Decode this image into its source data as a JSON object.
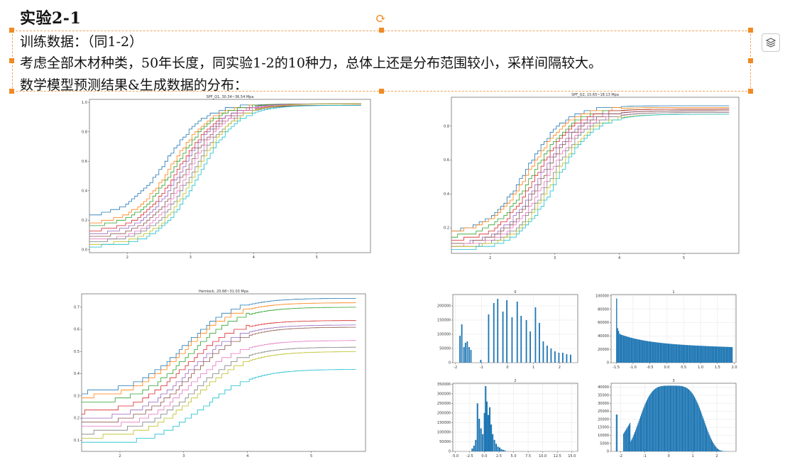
{
  "document": {
    "heading": "实验2-1",
    "lines": [
      "训练数据：（同1-2）",
      "考虑全部木材种类，50年长度，同实验1-2的10种力，总体上还是分布范围较小，采样间隔较大。",
      "数学模型预测结果&生成数据的分布："
    ]
  },
  "toolbar": {
    "layers_icon": "layers-icon",
    "rotate_icon": "rotate-handle-icon"
  },
  "colors": {
    "selection": "#f08a24",
    "bar": "#1f77b4"
  },
  "chart_data": [
    {
      "type": "line",
      "title": "SPF_Q1, 30.34~36.54 Mpa",
      "xlim": [
        1.4,
        5.85
      ],
      "ylim": [
        -0.02,
        1.02
      ],
      "xticks": [
        "2",
        "3",
        "4",
        "5"
      ],
      "yticks": [
        "0.0",
        "0.2",
        "0.4",
        "0.6",
        "0.8",
        "1.0"
      ],
      "series_count": 10
    },
    {
      "type": "line",
      "title": "SPF_Q2, 15.65~18.13 Mpa",
      "xlim": [
        1.4,
        5.85
      ],
      "ylim": [
        0.05,
        0.97
      ],
      "xticks": [
        "2",
        "3",
        "4",
        "5"
      ],
      "yticks": [
        "0.2",
        "0.4",
        "0.6",
        "0.8"
      ],
      "series_count": 10
    },
    {
      "type": "line",
      "title": "Hemlock, 20.68~31.03 Mpa",
      "xlim": [
        1.4,
        5.85
      ],
      "ylim": [
        0.05,
        0.76
      ],
      "xticks": [
        "2",
        "3",
        "4",
        "5"
      ],
      "yticks": [
        "0.1",
        "0.2",
        "0.3",
        "0.4",
        "0.5",
        "0.6",
        "0.7"
      ],
      "series_count": 10
    },
    {
      "type": "bar",
      "title": "0",
      "xlim": [
        -2.1,
        2.7
      ],
      "ylim": [
        0,
        240000
      ],
      "xticks": [
        "-2",
        "-1",
        "0",
        "1",
        "2"
      ],
      "yticks": [
        "0",
        "50000",
        "100000",
        "150000",
        "200000"
      ],
      "bins": [
        [
          -1.85,
          95000
        ],
        [
          -1.78,
          135000
        ],
        [
          -1.7,
          55000
        ],
        [
          -1.64,
          70000
        ],
        [
          -1.57,
          75000
        ],
        [
          -1.5,
          55000
        ],
        [
          -1.43,
          45000
        ],
        [
          -1.05,
          10000
        ],
        [
          -0.75,
          170000
        ],
        [
          -0.55,
          210000
        ],
        [
          -0.4,
          225000
        ],
        [
          -0.2,
          180000
        ],
        [
          -0.05,
          220000
        ],
        [
          0.15,
          160000
        ],
        [
          0.35,
          215000
        ],
        [
          0.5,
          165000
        ],
        [
          0.7,
          150000
        ],
        [
          0.85,
          110000
        ],
        [
          1.05,
          195000
        ],
        [
          1.2,
          140000
        ],
        [
          1.35,
          75000
        ],
        [
          1.5,
          60000
        ],
        [
          1.65,
          50000
        ],
        [
          1.8,
          40000
        ],
        [
          1.95,
          35000
        ],
        [
          2.1,
          35000
        ],
        [
          2.25,
          30000
        ],
        [
          2.4,
          28000
        ]
      ],
      "bin_width": 0.05
    },
    {
      "type": "bar",
      "title": "1",
      "xlim": [
        -1.65,
        2.05
      ],
      "ylim": [
        0,
        102000
      ],
      "xticks": [
        "-1.5",
        "-1.0",
        "-0.5",
        "0.0",
        "0.5",
        "1.0",
        "1.5",
        "2.0"
      ],
      "yticks": [
        "0",
        "20000",
        "40000",
        "60000",
        "80000",
        "100000"
      ],
      "profile": "peak-decay",
      "bin_start": -1.5,
      "bin_end": 1.95,
      "bin_count": 120,
      "peak": 96000,
      "plateau_start": 42000,
      "plateau_end": 23000
    },
    {
      "type": "bar",
      "title": "2",
      "xlim": [
        -5.4,
        16.0
      ],
      "ylim": [
        0,
        355000
      ],
      "xticks": [
        "-5.0",
        "-2.5",
        "0.0",
        "2.5",
        "5.0",
        "7.5",
        "10.0",
        "12.5",
        "15.0"
      ],
      "yticks": [
        "0",
        "50000",
        "100000",
        "150000",
        "200000",
        "250000",
        "300000",
        "350000"
      ],
      "bins": [
        [
          -2.2,
          15000
        ],
        [
          -1.9,
          30000
        ],
        [
          -1.6,
          60000
        ],
        [
          -1.3,
          250000
        ],
        [
          -1.0,
          170000
        ],
        [
          -0.7,
          120000
        ],
        [
          -0.4,
          90000
        ],
        [
          -0.1,
          200000
        ],
        [
          0.1,
          340000
        ],
        [
          0.3,
          260000
        ],
        [
          0.55,
          190000
        ],
        [
          0.8,
          230000
        ],
        [
          1.05,
          140000
        ],
        [
          1.3,
          90000
        ],
        [
          1.6,
          60000
        ],
        [
          1.9,
          40000
        ],
        [
          2.2,
          25000
        ],
        [
          2.5,
          20000
        ],
        [
          2.8,
          12000
        ],
        [
          3.1,
          8000
        ],
        [
          3.4,
          5000
        ]
      ],
      "bin_width": 0.25
    },
    {
      "type": "bar",
      "title": "3",
      "xlim": [
        -2.4,
        2.8
      ],
      "ylim": [
        0,
        42500
      ],
      "xticks": [
        "-2",
        "-1",
        "0",
        "1",
        "2"
      ],
      "yticks": [
        "0",
        "5000",
        "10000",
        "15000",
        "20000",
        "25000",
        "30000",
        "35000",
        "40000"
      ],
      "profile": "hump",
      "bin_start": -2.2,
      "bin_end": 2.5,
      "bin_count": 140,
      "spike_left": 23000,
      "peak": 41000
    }
  ]
}
